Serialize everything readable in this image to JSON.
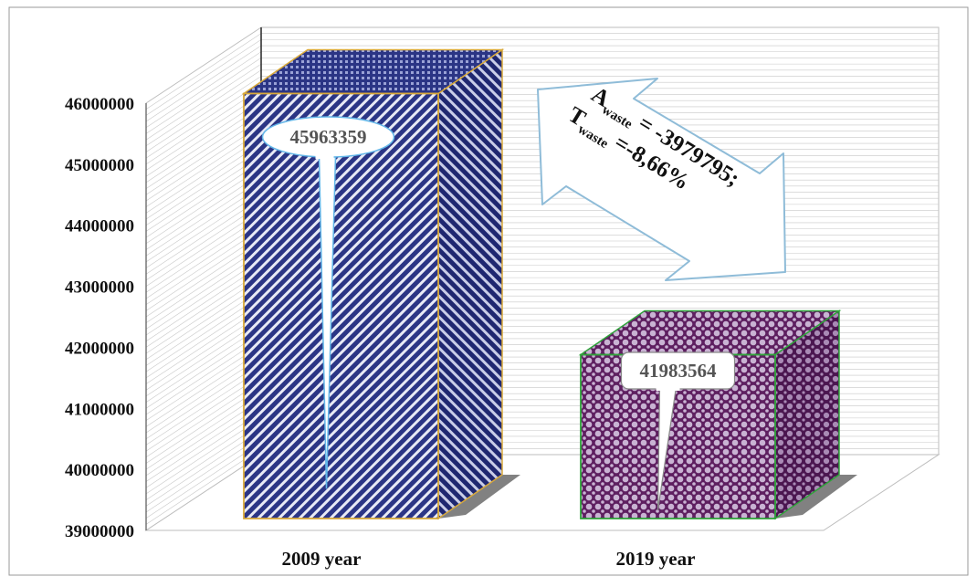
{
  "chart_data": {
    "type": "bar",
    "categories": [
      "2009 year",
      "2019 year"
    ],
    "values": [
      45963359,
      41983564
    ],
    "value_labels": [
      "45963359",
      "41983564"
    ],
    "ylim": [
      39000000,
      46000000
    ],
    "yticks": [
      39000000,
      40000000,
      41000000,
      42000000,
      43000000,
      44000000,
      45000000,
      46000000
    ],
    "ytick_labels": [
      "39000000",
      "40000000",
      "41000000",
      "42000000",
      "43000000",
      "44000000",
      "45000000",
      "46000000"
    ],
    "grid": true,
    "style": "3d",
    "annotation": {
      "line1_main": "A",
      "line1_sub": "waste",
      "line1_rest": " = -3979795;",
      "line2_main": "T",
      "line2_sub": "waste",
      "line2_rest": " =-8,66%"
    }
  },
  "colors": {
    "bar1_front": "#2b3585",
    "bar1_pattern": "#ffffff",
    "bar1_outline": "#d9a93a",
    "bar2_front": "#6a2a6a",
    "bar2_pattern": "#c9b3d3",
    "bar2_outline": "#2fa33a",
    "arrow_stroke": "#8fbcd8",
    "callout_stroke": "#62b6e8",
    "grid": "#c8c8c8"
  }
}
